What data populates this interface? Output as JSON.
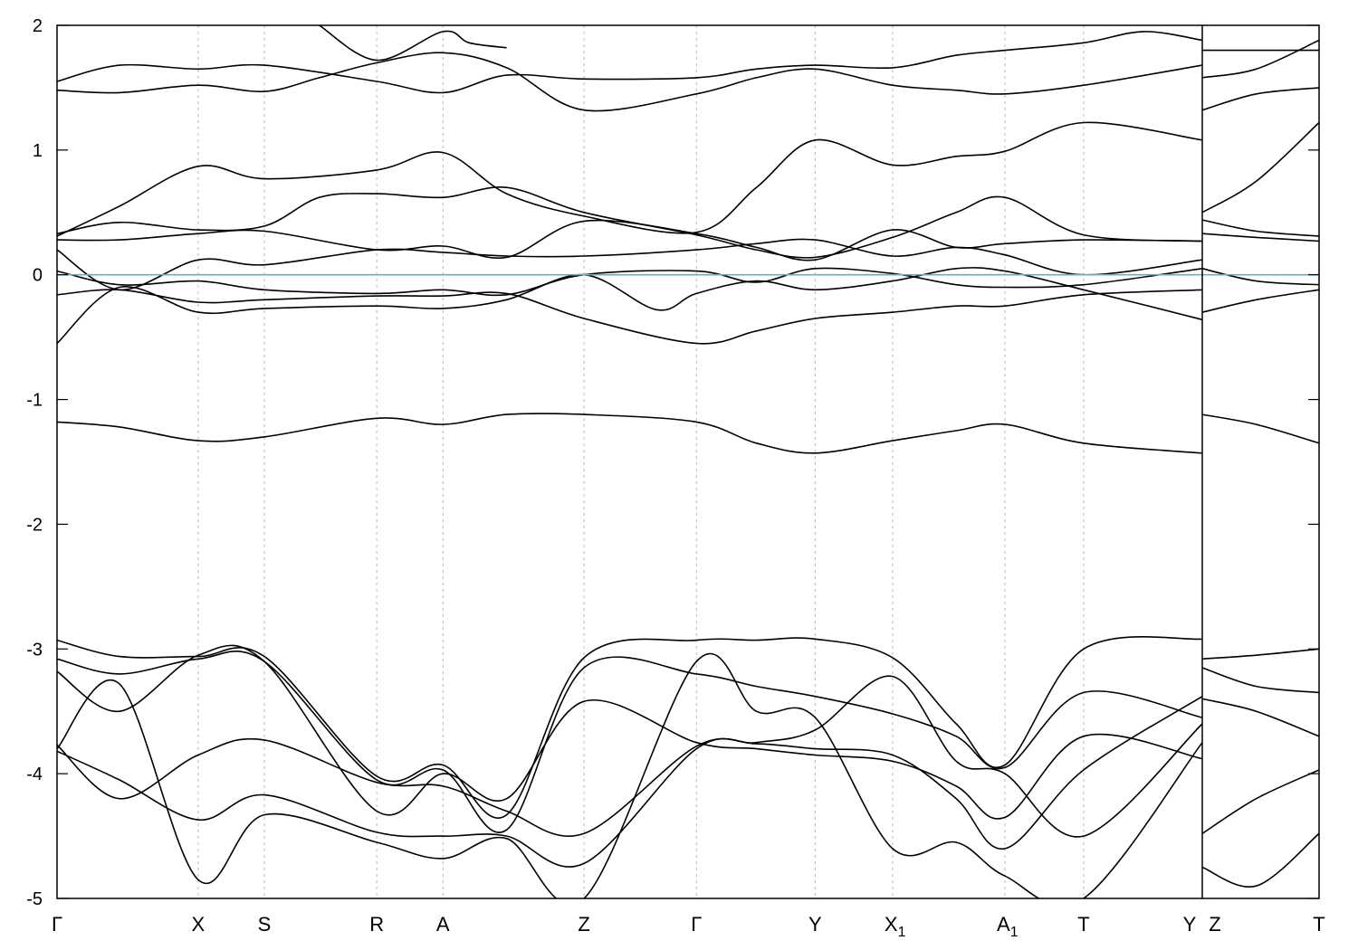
{
  "chart_data": {
    "type": "line",
    "title": "",
    "xlabel": "",
    "ylabel": "",
    "ylim": [
      -5,
      2
    ],
    "yticks": [
      2,
      1,
      0,
      -1,
      -2,
      -3,
      -4,
      -5
    ],
    "grid": "vertical dashed lines at high-symmetry points",
    "reference_line": {
      "y": 0,
      "color": "#5fb3c8"
    },
    "line_color": "#000000",
    "xlim": [
      0,
      10.1
    ],
    "segments": [
      [
        0,
        9.17
      ],
      [
        9.17,
        10.1
      ]
    ],
    "kpoints": [
      {
        "label": "Γ",
        "sub": "",
        "x": 0.0
      },
      {
        "label": "X",
        "sub": "",
        "x": 1.13
      },
      {
        "label": "S",
        "sub": "",
        "x": 1.66
      },
      {
        "label": "R",
        "sub": "",
        "x": 2.56
      },
      {
        "label": "A",
        "sub": "",
        "x": 3.09
      },
      {
        "label": "Z",
        "sub": "",
        "x": 4.22
      },
      {
        "label": "Γ",
        "sub": "",
        "x": 5.12
      },
      {
        "label": "Y",
        "sub": "",
        "x": 6.07
      },
      {
        "label": "X",
        "sub": "1",
        "x": 6.69
      },
      {
        "label": "A",
        "sub": "1",
        "x": 7.59
      },
      {
        "label": "T",
        "sub": "",
        "x": 8.22
      },
      {
        "label": "Y",
        "sub": "",
        "x": 9.17
      },
      {
        "label": "Z",
        "sub": "",
        "x": 9.17
      },
      {
        "label": "T",
        "sub": "",
        "x": 10.1
      }
    ],
    "series": [
      {
        "segment": 0,
        "x": [
          0,
          0.5,
          1.13,
          1.66,
          2.56,
          3.09,
          3.6,
          4.22,
          5.12,
          5.6,
          6.07,
          6.69,
          7.2,
          7.59,
          8.22,
          8.7,
          9.17
        ],
        "y": [
          1.55,
          1.68,
          1.65,
          1.68,
          1.55,
          1.46,
          1.6,
          1.57,
          1.58,
          1.65,
          1.68,
          1.66,
          1.76,
          1.8,
          1.86,
          1.95,
          1.88
        ]
      },
      {
        "segment": 0,
        "x": [
          0,
          0.5,
          1.13,
          1.66,
          2.1,
          2.56,
          3.09,
          3.6,
          4.22,
          5.12,
          5.6,
          6.07,
          6.69,
          7.2,
          7.59,
          8.22,
          9.17
        ],
        "y": [
          1.48,
          1.46,
          1.52,
          1.47,
          1.58,
          1.7,
          1.78,
          1.66,
          1.32,
          1.45,
          1.58,
          1.65,
          1.52,
          1.48,
          1.45,
          1.52,
          1.68
        ]
      },
      {
        "segment": 0,
        "x": [
          2.1,
          2.56,
          3.09,
          3.3,
          3.6
        ],
        "y": [
          2.0,
          1.72,
          1.95,
          1.86,
          1.82
        ]
      },
      {
        "segment": 0,
        "x": [
          0,
          0.5,
          1.13,
          1.66,
          2.56,
          3.09,
          3.6,
          4.22,
          5.12,
          5.6,
          6.07,
          6.69,
          7.2,
          7.59,
          8.22,
          9.17
        ],
        "y": [
          0.31,
          0.55,
          0.87,
          0.77,
          0.84,
          0.98,
          0.65,
          0.47,
          0.34,
          0.7,
          1.08,
          0.88,
          0.95,
          0.99,
          1.22,
          1.08
        ]
      },
      {
        "segment": 0,
        "x": [
          0,
          0.5,
          1.13,
          1.66,
          2.1,
          2.56,
          3.09,
          3.6,
          4.22,
          5.12,
          5.6,
          6.07,
          6.69,
          7.2,
          7.59,
          8.22,
          9.17
        ],
        "y": [
          0.33,
          0.42,
          0.36,
          0.39,
          0.62,
          0.65,
          0.62,
          0.7,
          0.5,
          0.32,
          0.2,
          0.14,
          0.3,
          0.5,
          0.62,
          0.32,
          0.27
        ]
      },
      {
        "segment": 0,
        "x": [
          0,
          0.5,
          1.13,
          1.66,
          2.56,
          3.09,
          3.6,
          4.22,
          5.12,
          5.6,
          6.07,
          6.69,
          7.2,
          7.59,
          8.22,
          9.17
        ],
        "y": [
          0.28,
          0.28,
          0.33,
          0.35,
          0.2,
          0.23,
          0.14,
          0.43,
          0.33,
          0.22,
          0.12,
          0.36,
          0.22,
          0.25,
          0.28,
          0.27
        ]
      },
      {
        "segment": 0,
        "x": [
          0,
          0.5,
          1.13,
          1.66,
          2.56,
          3.09,
          3.6,
          4.22,
          5.12,
          5.6,
          6.07,
          6.69,
          7.2,
          7.59,
          8.22,
          9.17
        ],
        "y": [
          0.2,
          -0.12,
          0.12,
          0.08,
          0.2,
          0.18,
          0.15,
          0.15,
          0.2,
          0.25,
          0.28,
          0.15,
          0.22,
          0.16,
          0.0,
          0.12
        ]
      },
      {
        "segment": 0,
        "x": [
          0,
          0.5,
          1.13,
          1.66,
          2.56,
          3.09,
          3.6,
          4.22,
          5.12,
          5.6,
          6.07,
          6.69,
          7.2,
          7.59,
          8.22,
          9.17
        ],
        "y": [
          0.03,
          -0.08,
          -0.05,
          -0.12,
          -0.15,
          -0.12,
          -0.16,
          0.0,
          0.03,
          -0.06,
          0.05,
          0.01,
          -0.08,
          -0.1,
          -0.08,
          0.05
        ]
      },
      {
        "segment": 0,
        "x": [
          0,
          0.5,
          1.13,
          1.66,
          2.56,
          3.09,
          3.6,
          4.22,
          5.12,
          5.6,
          6.07,
          6.69,
          7.2,
          7.59,
          8.22,
          9.17
        ],
        "y": [
          -0.16,
          -0.12,
          -0.22,
          -0.2,
          -0.17,
          -0.17,
          -0.15,
          -0.35,
          -0.55,
          -0.45,
          -0.35,
          -0.3,
          -0.25,
          -0.25,
          -0.16,
          -0.12
        ]
      },
      {
        "segment": 0,
        "x": [
          0,
          0.5,
          1.13,
          1.66,
          2.56,
          3.09,
          3.6,
          4.22,
          4.8,
          5.12,
          5.6,
          6.07,
          6.69,
          7.2,
          7.59,
          8.22,
          9.17
        ],
        "y": [
          -0.55,
          -0.1,
          -0.3,
          -0.27,
          -0.25,
          -0.27,
          -0.2,
          0.0,
          -0.28,
          -0.15,
          -0.05,
          -0.12,
          -0.05,
          0.05,
          0.03,
          -0.12,
          -0.36
        ]
      },
      {
        "segment": 0,
        "x": [
          0,
          0.5,
          1.13,
          1.66,
          2.56,
          3.09,
          3.6,
          4.22,
          5.12,
          5.6,
          6.07,
          6.69,
          7.2,
          7.59,
          8.22,
          9.17
        ],
        "y": [
          -1.18,
          -1.22,
          -1.33,
          -1.3,
          -1.15,
          -1.2,
          -1.12,
          -1.12,
          -1.18,
          -1.35,
          -1.43,
          -1.33,
          -1.25,
          -1.2,
          -1.35,
          -1.43
        ]
      },
      {
        "segment": 0,
        "x": [
          0,
          0.5,
          1.13,
          1.66,
          2.56,
          3.09,
          3.6,
          4.22,
          5.12,
          5.6,
          6.07,
          6.69,
          7.2,
          7.59,
          8.22,
          9.17
        ],
        "y": [
          -2.93,
          -3.06,
          -3.06,
          -3.06,
          -4.02,
          -3.93,
          -4.33,
          -3.07,
          -2.93,
          -2.93,
          -2.92,
          -3.07,
          -3.6,
          -3.93,
          -3.0,
          -2.92
        ]
      },
      {
        "segment": 0,
        "x": [
          0,
          0.5,
          1.13,
          1.66,
          2.56,
          3.09,
          3.6,
          4.22,
          5.12,
          5.6,
          6.07,
          6.69,
          7.2,
          7.59,
          8.22,
          9.17
        ],
        "y": [
          -3.08,
          -3.2,
          -3.08,
          -3.1,
          -4.05,
          -3.97,
          -4.45,
          -3.15,
          -3.2,
          -3.3,
          -3.38,
          -3.52,
          -3.7,
          -3.95,
          -3.35,
          -3.55
        ]
      },
      {
        "segment": 0,
        "x": [
          0,
          0.5,
          1.13,
          1.66,
          2.56,
          3.09,
          3.6,
          4.22,
          5.12,
          5.6,
          6.07,
          6.69,
          7.2,
          7.59,
          8.22,
          9.17
        ],
        "y": [
          -3.18,
          -3.5,
          -3.05,
          -3.1,
          -4.3,
          -4.0,
          -4.2,
          -3.42,
          -3.75,
          -3.8,
          -3.85,
          -3.9,
          -4.1,
          -4.35,
          -3.7,
          -3.88
        ]
      },
      {
        "segment": 0,
        "x": [
          0,
          0.5,
          1.13,
          1.66,
          2.56,
          3.09,
          3.6,
          4.22,
          5.12,
          5.6,
          6.07,
          6.69,
          7.2,
          7.59,
          8.22,
          9.17
        ],
        "y": [
          -3.77,
          -4.2,
          -3.85,
          -3.73,
          -4.07,
          -4.1,
          -4.3,
          -4.48,
          -3.78,
          -3.76,
          -3.8,
          -3.85,
          -4.2,
          -4.6,
          -3.97,
          -3.38
        ]
      },
      {
        "segment": 0,
        "x": [
          0,
          0.5,
          1.13,
          1.66,
          2.56,
          3.09,
          3.6,
          4.22,
          5.12,
          5.6,
          6.07,
          6.69,
          7.2,
          7.59,
          8.22,
          9.17
        ],
        "y": [
          -3.82,
          -4.05,
          -4.37,
          -4.17,
          -4.47,
          -4.5,
          -4.5,
          -4.72,
          -3.8,
          -3.75,
          -3.65,
          -3.22,
          -3.9,
          -4.0,
          -4.5,
          -3.6
        ]
      },
      {
        "segment": 0,
        "x": [
          0,
          0.5,
          1.13,
          1.66,
          2.56,
          3.09,
          3.6,
          4.22,
          5.12,
          5.6,
          6.07,
          6.69,
          7.2,
          7.59,
          8.22,
          9.17
        ],
        "y": [
          -3.8,
          -3.28,
          -4.85,
          -4.33,
          -4.55,
          -4.68,
          -4.52,
          -5.0,
          -3.1,
          -3.5,
          -3.55,
          -4.6,
          -4.55,
          -4.82,
          -5.0,
          -3.75
        ]
      },
      {
        "segment": 1,
        "x": [
          9.17,
          9.6,
          10.1
        ],
        "y": [
          1.58,
          1.65,
          1.88
        ]
      },
      {
        "segment": 1,
        "x": [
          9.17,
          9.6,
          10.1
        ],
        "y": [
          1.32,
          1.45,
          1.5
        ]
      },
      {
        "segment": 1,
        "x": [
          9.17,
          9.6,
          10.1
        ],
        "y": [
          1.8,
          1.8,
          1.8
        ]
      },
      {
        "segment": 1,
        "x": [
          9.17,
          9.6,
          10.1
        ],
        "y": [
          0.5,
          0.75,
          1.22
        ]
      },
      {
        "segment": 1,
        "x": [
          9.17,
          9.6,
          10.1
        ],
        "y": [
          0.44,
          0.35,
          0.31
        ]
      },
      {
        "segment": 1,
        "x": [
          9.17,
          9.6,
          10.1
        ],
        "y": [
          0.33,
          0.3,
          0.27
        ]
      },
      {
        "segment": 1,
        "x": [
          9.17,
          9.6,
          10.1
        ],
        "y": [
          0.05,
          -0.05,
          -0.08
        ]
      },
      {
        "segment": 1,
        "x": [
          9.17,
          9.6,
          10.1
        ],
        "y": [
          -0.3,
          -0.2,
          -0.12
        ]
      },
      {
        "segment": 1,
        "x": [
          9.17,
          9.6,
          10.1
        ],
        "y": [
          -1.12,
          -1.2,
          -1.35
        ]
      },
      {
        "segment": 1,
        "x": [
          9.17,
          9.6,
          10.1
        ],
        "y": [
          -3.08,
          -3.05,
          -3.0
        ]
      },
      {
        "segment": 1,
        "x": [
          9.17,
          9.6,
          10.1
        ],
        "y": [
          -3.15,
          -3.3,
          -3.35
        ]
      },
      {
        "segment": 1,
        "x": [
          9.17,
          9.6,
          10.1
        ],
        "y": [
          -3.4,
          -3.5,
          -3.7
        ]
      },
      {
        "segment": 1,
        "x": [
          9.17,
          9.6,
          10.1
        ],
        "y": [
          -4.48,
          -4.2,
          -3.97
        ]
      },
      {
        "segment": 1,
        "x": [
          9.17,
          9.6,
          10.1
        ],
        "y": [
          -4.75,
          -4.9,
          -4.48
        ]
      }
    ]
  }
}
